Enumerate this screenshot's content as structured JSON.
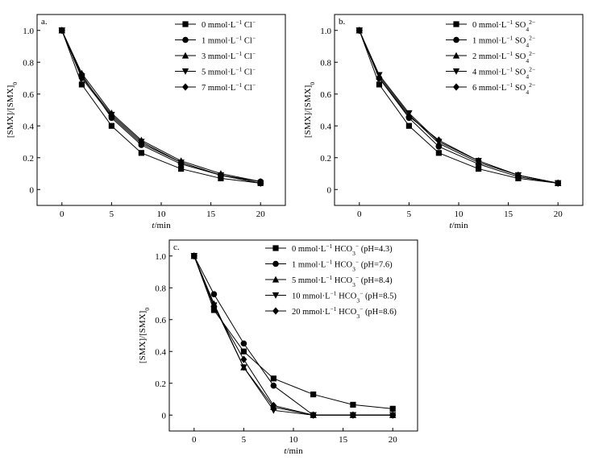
{
  "chart_data": [
    {
      "panel_label": "a.",
      "type": "line",
      "xlabel": "t/min",
      "ylabel": "[SMX]/[SMX]0",
      "xlim": [
        -2.5,
        22.5
      ],
      "ylim": [
        -0.1,
        1.1
      ],
      "xticks": [
        0,
        5,
        10,
        15,
        20
      ],
      "yticks": [
        0,
        0.2,
        0.4,
        0.6,
        0.8,
        1.0
      ],
      "xtick_labels": [
        "0",
        "5",
        "10",
        "15",
        "20"
      ],
      "ytick_labels": [
        "0",
        "0.2",
        "0.4",
        "0.6",
        "0.8",
        "1.0"
      ],
      "legend_position": "top-right",
      "x": [
        0,
        2,
        5,
        8,
        12,
        16,
        20
      ],
      "series": [
        {
          "name": "0 mmol·L⁻¹ Cl⁻",
          "marker": "square",
          "values": [
            1.0,
            0.66,
            0.4,
            0.23,
            0.13,
            0.07,
            0.04
          ]
        },
        {
          "name": "1 mmol·L⁻¹ Cl⁻",
          "marker": "circle",
          "values": [
            1.0,
            0.72,
            0.45,
            0.28,
            0.16,
            0.09,
            0.05
          ]
        },
        {
          "name": "3 mmol·L⁻¹ Cl⁻",
          "marker": "triangle-up",
          "values": [
            1.0,
            0.73,
            0.48,
            0.31,
            0.18,
            0.1,
            0.05
          ]
        },
        {
          "name": "5 mmol·L⁻¹ Cl⁻",
          "marker": "triangle-down",
          "values": [
            1.0,
            0.71,
            0.47,
            0.3,
            0.17,
            0.09,
            0.04
          ]
        },
        {
          "name": "7 mmol·L⁻¹ Cl⁻",
          "marker": "diamond",
          "values": [
            1.0,
            0.7,
            0.46,
            0.29,
            0.17,
            0.09,
            0.04
          ]
        }
      ]
    },
    {
      "panel_label": "b.",
      "type": "line",
      "xlabel": "t/min",
      "ylabel": "[SMX]/[SMX]0",
      "xlim": [
        -2.5,
        22.5
      ],
      "ylim": [
        -0.1,
        1.1
      ],
      "xticks": [
        0,
        5,
        10,
        15,
        20
      ],
      "yticks": [
        0,
        0.2,
        0.4,
        0.6,
        0.8,
        1.0
      ],
      "xtick_labels": [
        "0",
        "5",
        "10",
        "15",
        "20"
      ],
      "ytick_labels": [
        "0",
        "0.2",
        "0.4",
        "0.6",
        "0.8",
        "1.0"
      ],
      "legend_position": "top-right",
      "x": [
        0,
        2,
        5,
        8,
        12,
        16,
        20
      ],
      "series": [
        {
          "name": "0 mmol·L⁻¹ SO₄²⁻",
          "marker": "square",
          "values": [
            1.0,
            0.66,
            0.4,
            0.23,
            0.13,
            0.07,
            0.04
          ]
        },
        {
          "name": "1 mmol·L⁻¹ SO₄²⁻",
          "marker": "circle",
          "values": [
            1.0,
            0.7,
            0.45,
            0.27,
            0.16,
            0.08,
            0.04
          ]
        },
        {
          "name": "2 mmol·L⁻¹ SO₄²⁻",
          "marker": "triangle-up",
          "values": [
            1.0,
            0.71,
            0.47,
            0.29,
            0.17,
            0.09,
            0.04
          ]
        },
        {
          "name": "4 mmol·L⁻¹ SO₄²⁻",
          "marker": "triangle-down",
          "values": [
            1.0,
            0.72,
            0.48,
            0.3,
            0.18,
            0.09,
            0.04
          ]
        },
        {
          "name": "6 mmol·L⁻¹ SO₄²⁻",
          "marker": "diamond",
          "values": [
            1.0,
            0.7,
            0.46,
            0.31,
            0.18,
            0.09,
            0.04
          ]
        }
      ]
    },
    {
      "panel_label": "c.",
      "type": "line",
      "xlabel": "t/min",
      "ylabel": "[SMX]/[SMX]0",
      "xlim": [
        -2.5,
        22.5
      ],
      "ylim": [
        -0.1,
        1.1
      ],
      "xticks": [
        0,
        5,
        10,
        15,
        20
      ],
      "yticks": [
        0,
        0.2,
        0.4,
        0.6,
        0.8,
        1.0
      ],
      "xtick_labels": [
        "0",
        "5",
        "10",
        "15",
        "20"
      ],
      "ytick_labels": [
        "0",
        "0.2",
        "0.4",
        "0.6",
        "0.8",
        "1.0"
      ],
      "legend_position": "top-right",
      "x": [
        0,
        2,
        5,
        8,
        12,
        16,
        20
      ],
      "series": [
        {
          "name": "0 mmol·L⁻¹ HCO₃⁻ (pH=4.3)",
          "marker": "square",
          "values": [
            1.0,
            0.66,
            0.4,
            0.23,
            0.13,
            0.065,
            0.04
          ]
        },
        {
          "name": "1 mmol·L⁻¹ HCO₃⁻ (pH=7.6)",
          "marker": "circle",
          "values": [
            1.0,
            0.76,
            0.45,
            0.185,
            0.0,
            0.0,
            0.0
          ]
        },
        {
          "name": "5 mmol·L⁻¹ HCO₃⁻ (pH=8.4)",
          "marker": "triangle-up",
          "values": [
            1.0,
            0.7,
            0.3,
            0.05,
            0.0,
            0.0,
            0.0
          ]
        },
        {
          "name": "10 mmol·L⁻¹ HCO₃⁻ (pH=8.5)",
          "marker": "triangle-down",
          "values": [
            1.0,
            0.69,
            0.3,
            0.03,
            0.0,
            0.0,
            0.0
          ]
        },
        {
          "name": "20 mmol·L⁻¹ HCO₃⁻ (pH=8.6)",
          "marker": "diamond",
          "values": [
            1.0,
            0.68,
            0.35,
            0.06,
            0.0,
            0.0,
            0.0
          ]
        }
      ]
    }
  ]
}
